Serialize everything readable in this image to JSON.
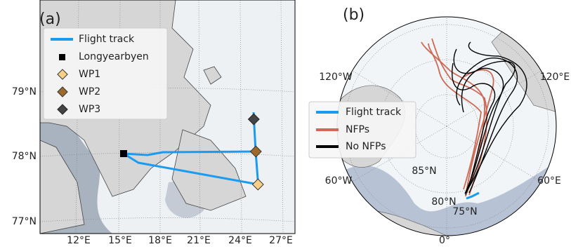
{
  "panels": [
    {
      "label": "(a)",
      "legend": [
        "Flight track",
        "Longyearbyen",
        "WP1",
        "WP2",
        "WP3"
      ],
      "lat_labels": [
        "79°N",
        "78°N",
        "77°N"
      ],
      "lon_labels": [
        "12°E",
        "15°E",
        "18°E",
        "21°E",
        "24°E",
        "27°E"
      ]
    },
    {
      "label": "(b)",
      "legend": [
        "Flight track",
        "NFPs",
        "No NFPs"
      ],
      "lon_labels": [
        "120°W",
        "120°E",
        "60°W",
        "60°E",
        "0°"
      ],
      "lat_labels": [
        "85°N",
        "80°N",
        "75°N"
      ]
    }
  ]
}
